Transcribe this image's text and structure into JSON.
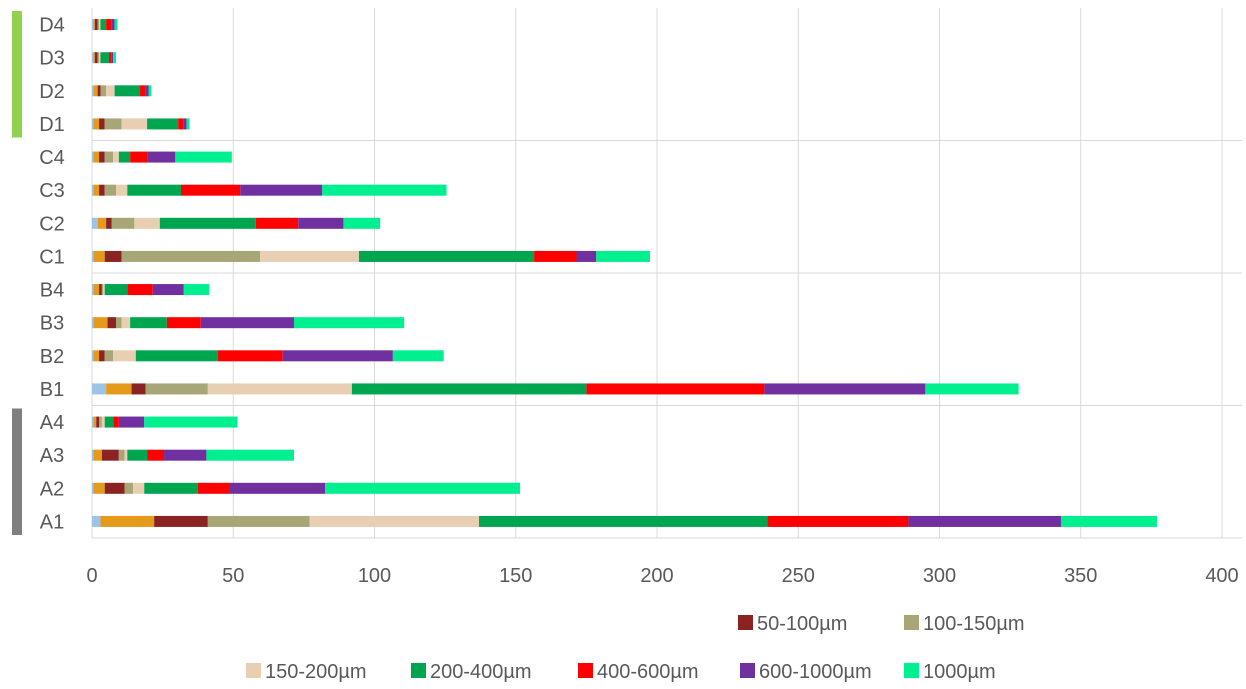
{
  "chart_data": {
    "type": "bar",
    "orientation": "horizontal",
    "stacked": true,
    "categories": [
      "A1",
      "A2",
      "A3",
      "A4",
      "B1",
      "B2",
      "B3",
      "B4",
      "C1",
      "C2",
      "C3",
      "C4",
      "D1",
      "D2",
      "D3",
      "D4"
    ],
    "xlim": [
      0,
      400
    ],
    "xticks": [
      "0",
      "50",
      "100",
      "150",
      "200",
      "250",
      "300",
      "350",
      "400"
    ],
    "grid": true,
    "legend_position": "bottom",
    "group_markers": [
      {
        "group": "A",
        "color": "#7f7f7f"
      },
      {
        "group": "D",
        "color": "#92d050"
      }
    ],
    "series": [
      {
        "name": "",
        "color": "#9dc3e6",
        "values": [
          3,
          0.5,
          0.5,
          0.5,
          5,
          0.5,
          0.5,
          0.5,
          0.5,
          2,
          0.5,
          0.5,
          0.5,
          0.5,
          0.5,
          0.5
        ]
      },
      {
        "name": "",
        "color": "#e69a1c",
        "values": [
          19,
          4,
          3,
          1,
          9,
          2,
          5,
          2,
          4,
          3,
          2,
          2,
          2,
          1.5,
          0.5,
          0.5
        ]
      },
      {
        "name": "50-100µm",
        "color": "#8b2323",
        "values": [
          19,
          7,
          6,
          1,
          5,
          2,
          3,
          1,
          6,
          2,
          2,
          2,
          2,
          1,
          1,
          1
        ]
      },
      {
        "name": "100-150µm",
        "color": "#a6a676",
        "values": [
          36,
          3,
          2,
          1,
          22,
          3,
          2,
          0.5,
          49,
          8,
          4,
          3,
          6,
          2,
          0.5,
          0.5
        ]
      },
      {
        "name": "150-200µm",
        "color": "#e8cfb3",
        "values": [
          60,
          4,
          1,
          1,
          51,
          8,
          3,
          0.5,
          35,
          9,
          4,
          2,
          9,
          3,
          0.5,
          0.5
        ]
      },
      {
        "name": "200-400µm",
        "color": "#00a550",
        "values": [
          102,
          19,
          7,
          3,
          83,
          29,
          13,
          8,
          62,
          34,
          19,
          4,
          11,
          9,
          3,
          2
        ]
      },
      {
        "name": "400-600µm",
        "color": "#ff0000",
        "values": [
          50,
          11,
          6,
          2,
          63,
          23,
          12,
          9,
          15,
          15,
          21,
          6,
          2,
          2,
          1,
          2
        ]
      },
      {
        "name": "600-1000µm",
        "color": "#7030a0",
        "values": [
          54,
          34,
          15,
          9,
          57,
          39,
          33,
          11,
          7,
          16,
          29,
          10,
          1,
          1,
          0.5,
          1
        ]
      },
      {
        "name": "1000µm",
        "color": "#00f090",
        "values": [
          34,
          69,
          31,
          33,
          33,
          18,
          39,
          9,
          19,
          13,
          44,
          20,
          1,
          1,
          1,
          1
        ]
      }
    ]
  }
}
